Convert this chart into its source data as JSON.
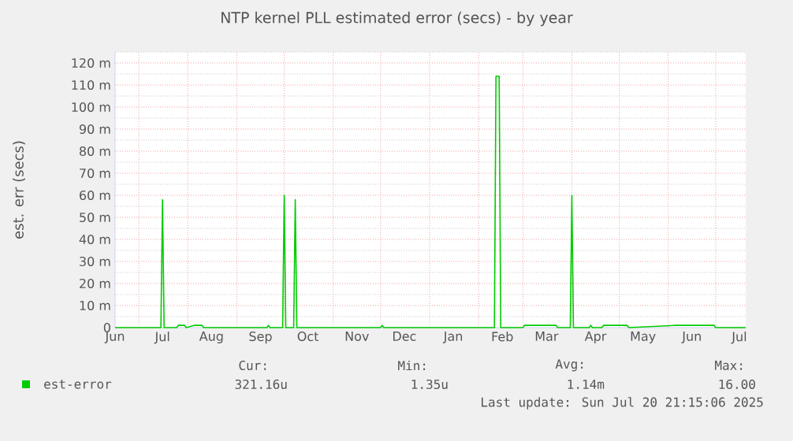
{
  "chart_data": {
    "type": "line",
    "title": "NTP kernel PLL estimated error (secs) - by year",
    "ylabel": "est. err (secs)",
    "x": [
      "2024-06-16",
      "2024-07-15",
      "2024-07-16",
      "2024-07-17",
      "2024-07-25",
      "2024-07-26",
      "2024-07-30",
      "2024-07-31",
      "2024-08-05",
      "2024-08-10",
      "2024-08-11",
      "2024-09-20",
      "2024-09-21",
      "2024-09-22",
      "2024-09-30",
      "2024-10-01",
      "2024-10-02",
      "2024-10-07",
      "2024-10-08",
      "2024-10-09",
      "2024-12-01",
      "2024-12-02",
      "2024-12-03",
      "2025-02-11",
      "2025-02-12",
      "2025-02-14",
      "2025-02-15",
      "2025-03-01",
      "2025-03-02",
      "2025-03-22",
      "2025-03-23",
      "2025-03-31",
      "2025-04-01",
      "2025-04-02",
      "2025-04-12",
      "2025-04-13",
      "2025-04-14",
      "2025-04-20",
      "2025-04-21",
      "2025-05-06",
      "2025-05-07",
      "2025-06-05",
      "2025-06-30",
      "2025-07-01",
      "2025-07-20"
    ],
    "series": [
      {
        "name": "est-error",
        "color": "#00cc00",
        "values": [
          0,
          0,
          58,
          0,
          0,
          1,
          1,
          0,
          1,
          1,
          0,
          0,
          1,
          0,
          0,
          60,
          0,
          0,
          58,
          0,
          0,
          1,
          0,
          0,
          114,
          114,
          0,
          0,
          1,
          1,
          0,
          0,
          60,
          0,
          0,
          1,
          0,
          0,
          1,
          1,
          0,
          1,
          1,
          0,
          0
        ]
      }
    ],
    "xlim": [
      "2024-06-16",
      "2025-07-20"
    ],
    "xticks": [
      {
        "value": "2024-06-16",
        "label": "Jun"
      },
      {
        "value": "2024-07-16",
        "label": "Jul"
      },
      {
        "value": "2024-08-16",
        "label": "Aug"
      },
      {
        "value": "2024-09-16",
        "label": "Sep"
      },
      {
        "value": "2024-10-16",
        "label": "Oct"
      },
      {
        "value": "2024-11-16",
        "label": "Nov"
      },
      {
        "value": "2024-12-16",
        "label": "Dec"
      },
      {
        "value": "2025-01-16",
        "label": "Jan"
      },
      {
        "value": "2025-02-16",
        "label": "Feb"
      },
      {
        "value": "2025-03-16",
        "label": "Mar"
      },
      {
        "value": "2025-04-16",
        "label": "Apr"
      },
      {
        "value": "2025-05-16",
        "label": "May"
      },
      {
        "value": "2025-06-16",
        "label": "Jun"
      },
      {
        "value": "2025-07-16",
        "label": "Jul"
      },
      {
        "value": "2024-07-01",
        "label": null
      },
      {
        "value": "2024-08-01",
        "label": null
      },
      {
        "value": "2024-09-01",
        "label": null
      },
      {
        "value": "2024-10-01",
        "label": null
      },
      {
        "value": "2024-11-01",
        "label": null
      },
      {
        "value": "2024-12-01",
        "label": null
      },
      {
        "value": "2025-01-01",
        "label": null
      },
      {
        "value": "2025-02-01",
        "label": null
      },
      {
        "value": "2025-03-01",
        "label": null
      },
      {
        "value": "2025-04-01",
        "label": null
      },
      {
        "value": "2025-05-01",
        "label": null
      },
      {
        "value": "2025-06-01",
        "label": null
      },
      {
        "value": "2025-07-01",
        "label": null
      }
    ],
    "ylim": [
      0,
      125
    ],
    "yticks": [
      {
        "value": 0,
        "label": "0"
      },
      {
        "value": 10,
        "label": "10 m"
      },
      {
        "value": 20,
        "label": "20 m"
      },
      {
        "value": 30,
        "label": "30 m"
      },
      {
        "value": 40,
        "label": "40 m"
      },
      {
        "value": 50,
        "label": "50 m"
      },
      {
        "value": 60,
        "label": "60 m"
      },
      {
        "value": 70,
        "label": "70 m"
      },
      {
        "value": 80,
        "label": "80 m"
      },
      {
        "value": 90,
        "label": "90 m"
      },
      {
        "value": 100,
        "label": "100 m"
      },
      {
        "value": 110,
        "label": "110 m"
      },
      {
        "value": 120,
        "label": "120 m"
      },
      {
        "value": 5,
        "label": null
      },
      {
        "value": 15,
        "label": null
      },
      {
        "value": 25,
        "label": null
      },
      {
        "value": 35,
        "label": null
      },
      {
        "value": 45,
        "label": null
      },
      {
        "value": 55,
        "label": null
      },
      {
        "value": 65,
        "label": null
      },
      {
        "value": 75,
        "label": null
      },
      {
        "value": 85,
        "label": null
      },
      {
        "value": 95,
        "label": null
      },
      {
        "value": 105,
        "label": null
      },
      {
        "value": 115,
        "label": null
      },
      {
        "value": 125,
        "label": null
      }
    ],
    "grid": true,
    "legend": "bottom",
    "annotations": [
      "Cur:",
      "Min:",
      "Avg:",
      "Max:",
      "321.16u",
      "1.35u",
      "1.14m",
      "16.00",
      "Last update: Sun Jul 20 21:15:06 2025"
    ]
  }
}
